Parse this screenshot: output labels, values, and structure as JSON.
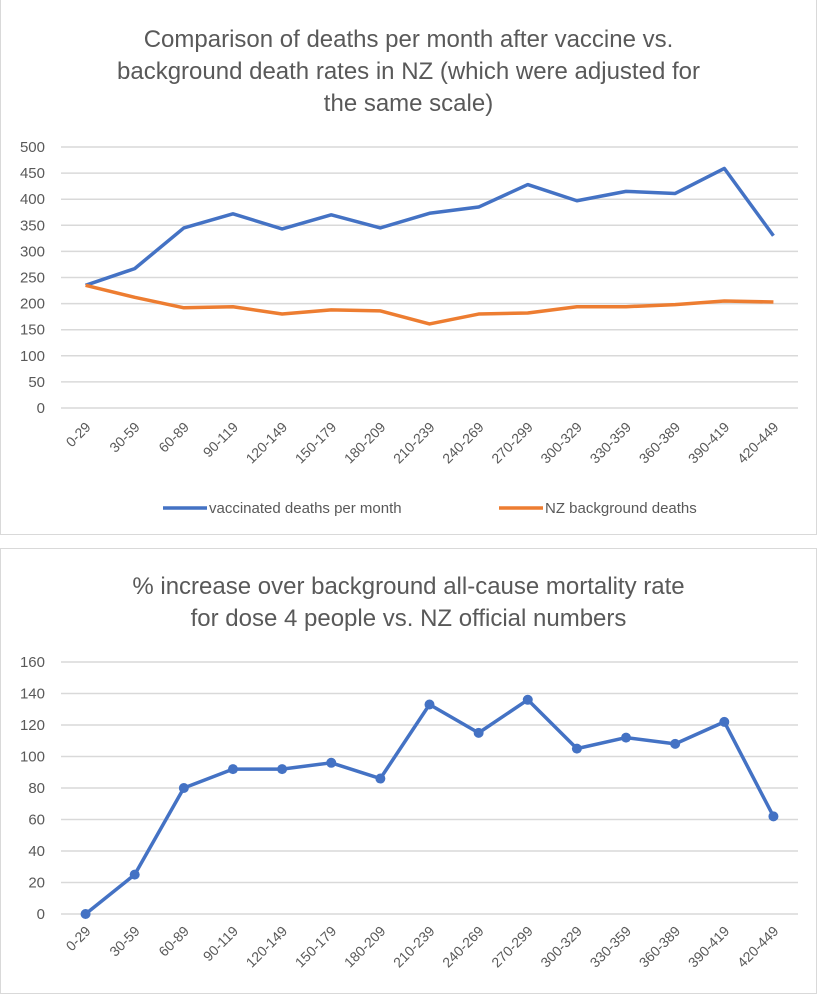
{
  "chart_data": [
    {
      "type": "line",
      "title": "Comparison of deaths per month after vaccine vs. background death rates in NZ (which were adjusted for the same scale)",
      "title_lines": [
        "Comparison of deaths per month after vaccine vs.",
        "background death rates in NZ (which were adjusted for",
        "the same scale)"
      ],
      "categories": [
        "0-29",
        "30-59",
        "60-89",
        "90-119",
        "120-149",
        "150-179",
        "180-209",
        "210-239",
        "240-269",
        "270-299",
        "300-329",
        "330-359",
        "360-389",
        "390-419",
        "420-449"
      ],
      "yticks": [
        0,
        50,
        100,
        150,
        200,
        250,
        300,
        350,
        400,
        450,
        500
      ],
      "ylim": [
        0,
        500
      ],
      "grid": true,
      "legend": "bottom",
      "series": [
        {
          "name": "vaccinated deaths per month",
          "color": "#4472c4",
          "values": [
            235,
            267,
            345,
            372,
            343,
            370,
            345,
            373,
            385,
            428,
            397,
            415,
            411,
            459,
            330
          ]
        },
        {
          "name": "NZ background deaths",
          "color": "#ed7d31",
          "values": [
            235,
            212,
            192,
            194,
            180,
            188,
            186,
            161,
            180,
            182,
            194,
            194,
            198,
            205,
            203
          ]
        }
      ]
    },
    {
      "type": "line",
      "title": "% increase over background all-cause mortality rate for dose 4 people vs. NZ official numbers",
      "title_lines": [
        "% increase over background all-cause mortality rate",
        "for dose 4 people vs. NZ official numbers"
      ],
      "categories": [
        "0-29",
        "30-59",
        "60-89",
        "90-119",
        "120-149",
        "150-179",
        "180-209",
        "210-239",
        "240-269",
        "270-299",
        "300-329",
        "330-359",
        "360-389",
        "390-419",
        "420-449"
      ],
      "yticks": [
        0,
        20,
        40,
        60,
        80,
        100,
        120,
        140,
        160
      ],
      "ylim": [
        0,
        160
      ],
      "grid": true,
      "markers": true,
      "series": [
        {
          "name": "% increase",
          "color": "#4472c4",
          "values": [
            0,
            25,
            80,
            92,
            92,
            96,
            86,
            133,
            115,
            136,
            105,
            112,
            108,
            122,
            62
          ]
        }
      ]
    }
  ]
}
